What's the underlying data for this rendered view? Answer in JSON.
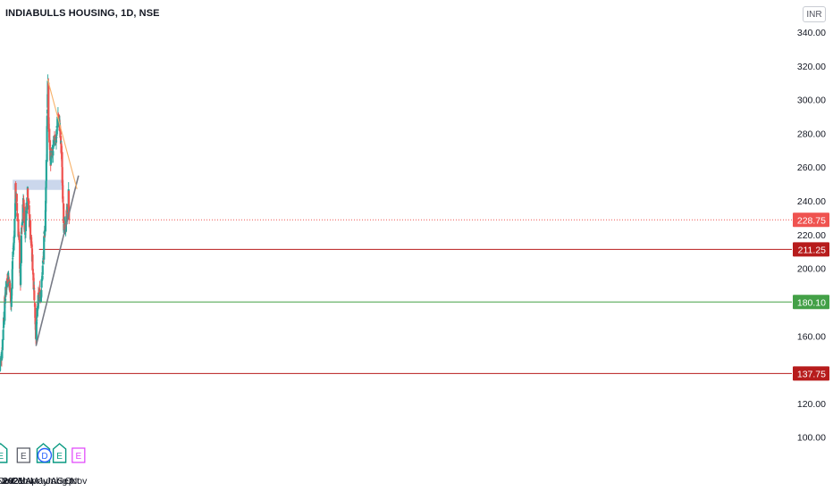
{
  "header": {
    "title": "INDIABULLS HOUSING, 1D, NSE",
    "currency": "INR"
  },
  "colors": {
    "up": "#26a69a",
    "down": "#ef5350",
    "support_red": "#b71c1c",
    "support_green": "#43a047",
    "resistance_zone": "#c5d3ea",
    "trendline_gray": "#787b86",
    "trendline_orange": "#f7b26a",
    "current_price": "#ef5350",
    "event_green": "#089981",
    "event_blue": "#2962ff",
    "event_magenta": "#e040fb",
    "event_gray": "#50535e"
  },
  "chart_data": {
    "type": "candlestick",
    "symbol": "INDIABULLS HOUSING",
    "interval": "1D",
    "exchange": "NSE",
    "y_axis": {
      "ticks": [
        "340.00",
        "320.00",
        "300.00",
        "280.00",
        "260.00",
        "240.00",
        "220.00",
        "200.00",
        "160.00",
        "120.00",
        "100.00"
      ],
      "range": [
        94,
        347
      ]
    },
    "x_axis": {
      "ticks": [
        {
          "label": "Nov",
          "bold": false
        },
        {
          "label": "Dec",
          "bold": false
        },
        {
          "label": "2021",
          "bold": true
        },
        {
          "label": "Feb",
          "bold": false
        },
        {
          "label": "Mar",
          "bold": false
        },
        {
          "label": "Apr",
          "bold": false
        },
        {
          "label": "May",
          "bold": false
        },
        {
          "label": "Jun",
          "bold": false
        },
        {
          "label": "Jul",
          "bold": false
        },
        {
          "label": "Aug",
          "bold": false
        },
        {
          "label": "Sep",
          "bold": false
        },
        {
          "label": "Oct",
          "bold": false
        },
        {
          "label": "Nov",
          "bold": false
        }
      ]
    },
    "price_labels": [
      {
        "value": 228.75,
        "label": "228.75",
        "kind": "current"
      },
      {
        "value": 211.25,
        "label": "211.25",
        "kind": "support_red"
      },
      {
        "value": 180.1,
        "label": "180.10",
        "kind": "support_green"
      },
      {
        "value": 137.75,
        "label": "137.75",
        "kind": "support_red"
      }
    ],
    "horizontal_lines": [
      {
        "value": 211.25,
        "from": "2021-05-01",
        "to": "end"
      },
      {
        "value": 180.1,
        "from": "2020-11-01",
        "to": "end"
      },
      {
        "value": 137.75,
        "from": "2020-11-01",
        "to": "end"
      }
    ],
    "resistance_zone": {
      "from": "2020-12-30",
      "to": "2021-08-24",
      "low": 246.5,
      "high": 252.5
    },
    "trendlines": [
      {
        "from": [
          "2021-04-17",
          154
        ],
        "to": [
          "2021-10-31",
          255
        ],
        "kind": "gray"
      },
      {
        "from": [
          "2021-06-10",
          312
        ],
        "to": [
          "2021-10-24",
          247
        ],
        "kind": "orange"
      }
    ],
    "events": [
      {
        "date": "2020-11-04",
        "symbol": "E",
        "kind": "green"
      },
      {
        "date": "2021-02-18",
        "symbol": "E",
        "kind": "gray"
      },
      {
        "date": "2021-05-21",
        "symbol": "E",
        "kind": "green"
      },
      {
        "date": "2021-05-27",
        "symbol": "D",
        "kind": "blue"
      },
      {
        "date": "2021-08-04",
        "symbol": "E",
        "kind": "green"
      },
      {
        "date": "2021-10-31",
        "symbol": "E",
        "kind": "magenta"
      }
    ],
    "price_path": [
      [
        "2020-11-01",
        142
      ],
      [
        "2020-11-10",
        150
      ],
      [
        "2020-11-18",
        170
      ],
      [
        "2020-11-26",
        184
      ],
      [
        "2020-12-07",
        197
      ],
      [
        "2020-12-15",
        192
      ],
      [
        "2020-12-22",
        178
      ],
      [
        "2020-12-31",
        210
      ],
      [
        "2021-01-06",
        219
      ],
      [
        "2021-01-12",
        246
      ],
      [
        "2021-01-21",
        231
      ],
      [
        "2021-01-29",
        214
      ],
      [
        "2021-02-04",
        192
      ],
      [
        "2021-02-08",
        219
      ],
      [
        "2021-02-18",
        241
      ],
      [
        "2021-02-25",
        222
      ],
      [
        "2021-03-04",
        238
      ],
      [
        "2021-03-09",
        248
      ],
      [
        "2021-03-18",
        228
      ],
      [
        "2021-03-25",
        216
      ],
      [
        "2021-04-07",
        190
      ],
      [
        "2021-04-12",
        176
      ],
      [
        "2021-04-17",
        159
      ],
      [
        "2021-04-23",
        175
      ],
      [
        "2021-04-30",
        184
      ],
      [
        "2021-05-10",
        185
      ],
      [
        "2021-05-17",
        198
      ],
      [
        "2021-05-27",
        222
      ],
      [
        "2021-06-01",
        238
      ],
      [
        "2021-06-06",
        281
      ],
      [
        "2021-06-11",
        307
      ],
      [
        "2021-06-15",
        283
      ],
      [
        "2021-06-24",
        264
      ],
      [
        "2021-07-02",
        266
      ],
      [
        "2021-07-12",
        278
      ],
      [
        "2021-07-20",
        276
      ],
      [
        "2021-07-27",
        292
      ],
      [
        "2021-08-05",
        284
      ],
      [
        "2021-08-13",
        268
      ],
      [
        "2021-08-20",
        242
      ],
      [
        "2021-08-25",
        223
      ],
      [
        "2021-08-31",
        222
      ],
      [
        "2021-09-07",
        233
      ],
      [
        "2021-09-13",
        233
      ],
      [
        "2021-09-15",
        244
      ],
      [
        "2021-09-17",
        228.75
      ]
    ]
  }
}
